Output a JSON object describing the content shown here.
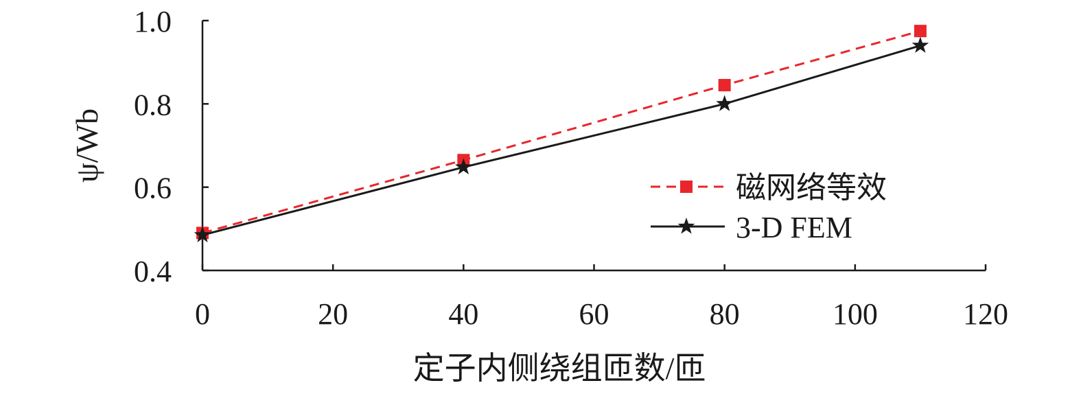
{
  "chart_data": {
    "type": "line",
    "xlabel": "定子内侧绕组匝数/匝",
    "ylabel": "ψ/Wb",
    "xlim": [
      0,
      120
    ],
    "ylim": [
      0.4,
      1.0
    ],
    "xticks": [
      0,
      20,
      40,
      60,
      80,
      100,
      120
    ],
    "yticks": [
      0.4,
      0.6,
      0.8,
      1.0
    ],
    "xtick_labels": [
      "0",
      "20",
      "40",
      "60",
      "80",
      "100",
      "120"
    ],
    "ytick_labels": [
      "0.4",
      "0.6",
      "0.8",
      "1.0"
    ],
    "x": [
      0,
      40,
      80,
      110
    ],
    "grid": false,
    "legend": "center-right",
    "series": [
      {
        "name": "磁网络等效",
        "values": [
          0.49,
          0.665,
          0.845,
          0.975
        ],
        "color": "#e8262b",
        "line": "dashed",
        "marker": "square"
      },
      {
        "name": "3-D FEM",
        "values": [
          0.485,
          0.648,
          0.8,
          0.94
        ],
        "color": "#1a1a1a",
        "line": "solid",
        "marker": "star"
      }
    ]
  }
}
